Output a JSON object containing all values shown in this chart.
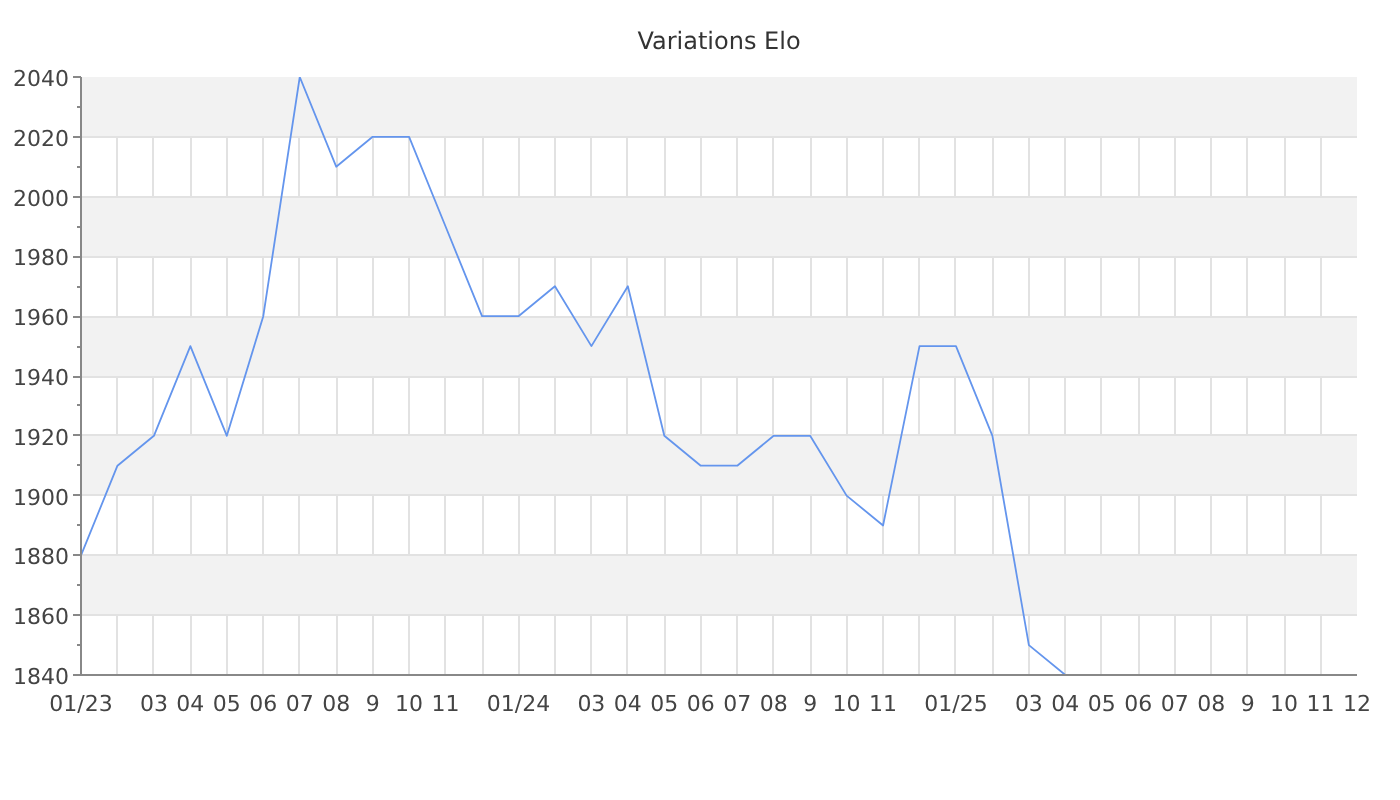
{
  "chart_data": {
    "type": "line",
    "title": "Variations Elo",
    "x": [
      "2023-01",
      "2023-02",
      "2023-03",
      "2023-04",
      "2023-05",
      "2023-06",
      "2023-07",
      "2023-08",
      "2023-09",
      "2023-10",
      "2023-11",
      "2023-12",
      "2024-01",
      "2024-02",
      "2024-03",
      "2024-04",
      "2024-05",
      "2024-06",
      "2024-07",
      "2024-08",
      "2024-09",
      "2024-10",
      "2024-11",
      "2024-12",
      "2025-01",
      "2025-02",
      "2025-03",
      "2025-04"
    ],
    "series": [
      {
        "color": "#6495ed",
        "values": [
          1880,
          1910,
          1920,
          1950,
          1920,
          1960,
          2040,
          2010,
          2020,
          2020,
          1990,
          1960,
          1960,
          1970,
          1950,
          1970,
          1920,
          1910,
          1910,
          1920,
          1920,
          1900,
          1890,
          1950,
          1950,
          1920,
          1850,
          1840
        ]
      }
    ],
    "xlim": [
      "2023-01",
      "2025-12"
    ],
    "xticks": [
      {
        "value": "2023-01",
        "label": "01/23"
      },
      {
        "value": "2023-02",
        "label": null
      },
      {
        "value": "2023-03",
        "label": "03"
      },
      {
        "value": "2023-04",
        "label": "04"
      },
      {
        "value": "2023-05",
        "label": "05"
      },
      {
        "value": "2023-06",
        "label": "06"
      },
      {
        "value": "2023-07",
        "label": "07"
      },
      {
        "value": "2023-08",
        "label": "08"
      },
      {
        "value": "2023-09",
        "label": "9"
      },
      {
        "value": "2023-10",
        "label": "10"
      },
      {
        "value": "2023-11",
        "label": "11"
      },
      {
        "value": "2023-12",
        "label": null
      },
      {
        "value": "2024-01",
        "label": "01/24"
      },
      {
        "value": "2024-02",
        "label": null
      },
      {
        "value": "2024-03",
        "label": "03"
      },
      {
        "value": "2024-04",
        "label": "04"
      },
      {
        "value": "2024-05",
        "label": "05"
      },
      {
        "value": "2024-06",
        "label": "06"
      },
      {
        "value": "2024-07",
        "label": "07"
      },
      {
        "value": "2024-08",
        "label": "08"
      },
      {
        "value": "2024-09",
        "label": "9"
      },
      {
        "value": "2024-10",
        "label": "10"
      },
      {
        "value": "2024-11",
        "label": "11"
      },
      {
        "value": "2024-12",
        "label": null
      },
      {
        "value": "2025-01",
        "label": "01/25"
      },
      {
        "value": "2025-02",
        "label": null
      },
      {
        "value": "2025-03",
        "label": "03"
      },
      {
        "value": "2025-04",
        "label": "04"
      },
      {
        "value": "2025-05",
        "label": "05"
      },
      {
        "value": "2025-06",
        "label": "06"
      },
      {
        "value": "2025-07",
        "label": "07"
      },
      {
        "value": "2025-08",
        "label": "08"
      },
      {
        "value": "2025-09",
        "label": "9"
      },
      {
        "value": "2025-10",
        "label": "10"
      },
      {
        "value": "2025-11",
        "label": "11"
      },
      {
        "value": "2025-12",
        "label": "12"
      }
    ],
    "ylim": [
      1840,
      2040
    ],
    "yticks": [
      1840,
      1860,
      1880,
      1900,
      1920,
      1940,
      1960,
      1980,
      2000,
      2020,
      2040
    ],
    "grid": true,
    "marker": "none",
    "line_style": "solid"
  }
}
